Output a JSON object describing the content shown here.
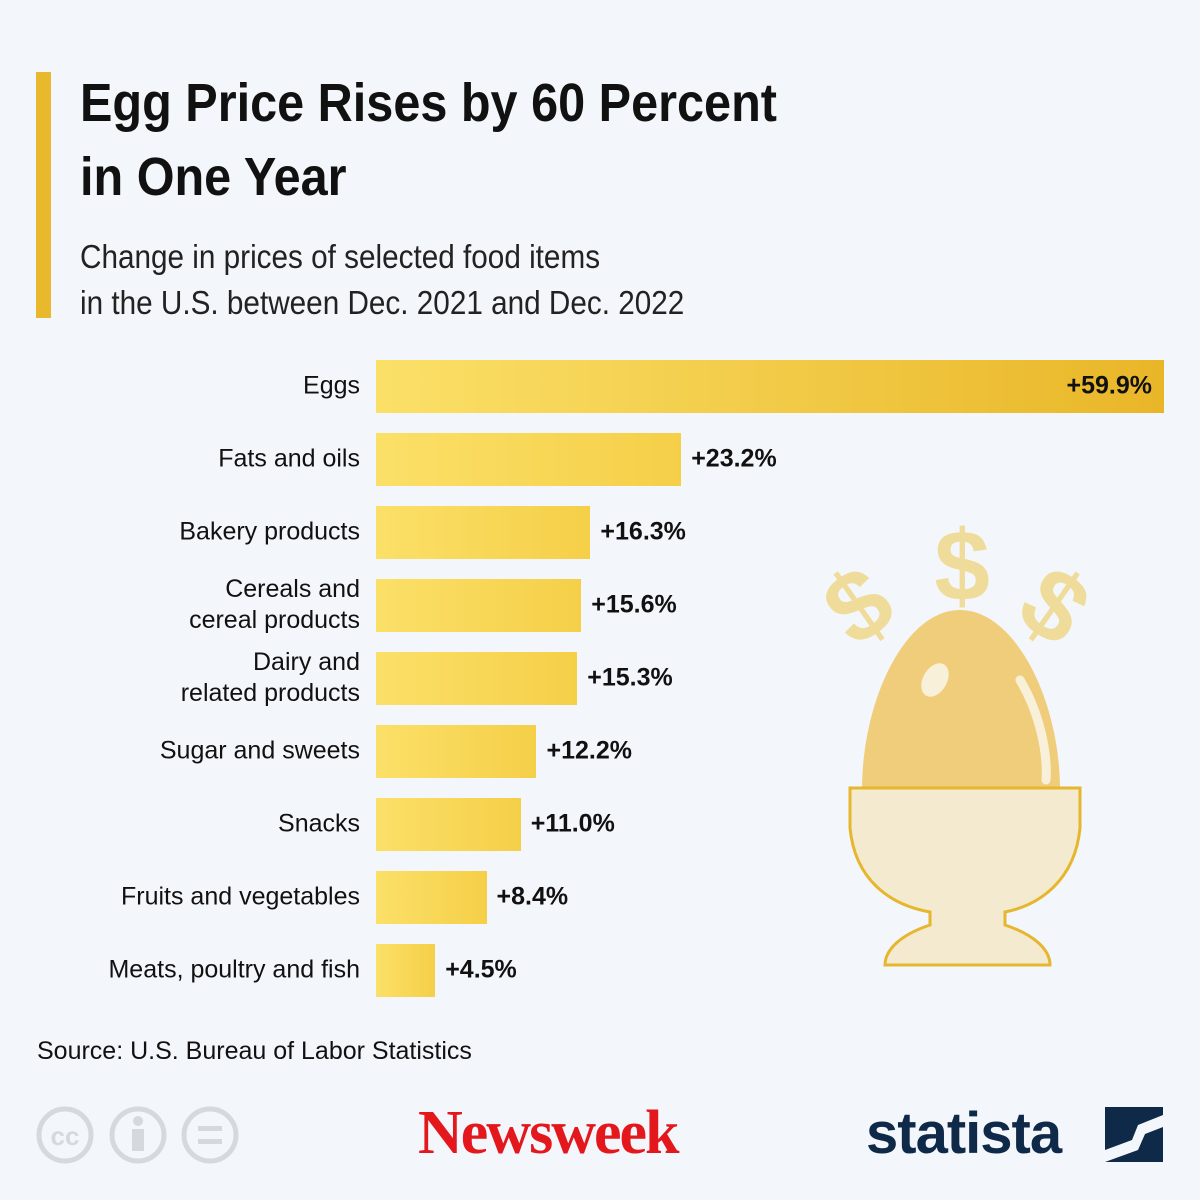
{
  "chart_data": {
    "type": "bar",
    "title": "Egg Price Rises by 60 Percent\nin One Year",
    "subtitle": "Change in prices of selected food items\nin the U.S. between Dec. 2021 and Dec. 2022",
    "categories": [
      "Eggs",
      "Fats and oils",
      "Bakery products",
      "Cereals and\ncereal products",
      "Dairy and\nrelated products",
      "Sugar and sweets",
      "Snacks",
      "Fruits and vegetables",
      "Meats, poultry and fish"
    ],
    "values": [
      59.9,
      23.2,
      16.3,
      15.6,
      15.3,
      12.2,
      11.0,
      8.4,
      4.5
    ],
    "value_labels": [
      "+59.9%",
      "+23.2%",
      "+16.3%",
      "+15.6%",
      "+15.3%",
      "+12.2%",
      "+11.0%",
      "+8.4%",
      "+4.5%"
    ],
    "color": "#f5cf48",
    "highlight_color": "#e9b628",
    "source": "Source: U.S. Bureau of Labor Statistics"
  },
  "illustration": {
    "symbol": "$"
  },
  "footer": {
    "license": "cc",
    "newsweek": "Newsweek",
    "statista": "statista"
  }
}
